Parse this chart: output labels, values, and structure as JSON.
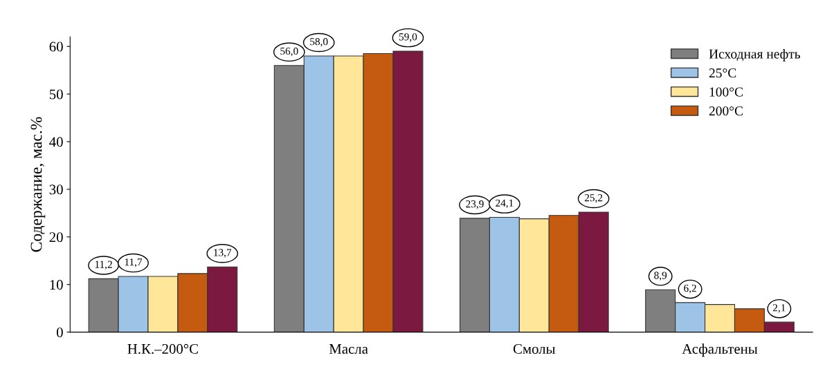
{
  "chart_data": {
    "type": "bar",
    "ylabel": "Содержание, мас.%",
    "categories": [
      "Н.К.–200°C",
      "Масла",
      "Смолы",
      "Асфальтены"
    ],
    "series": [
      {
        "name": "Исходная нефть",
        "color": "#7f7f7f",
        "values": [
          11.2,
          56.0,
          23.9,
          8.9
        ],
        "value_labels": [
          "11,2",
          "56,0",
          "23,9",
          "8,9"
        ]
      },
      {
        "name": "25°C",
        "color": "#9dc3e6",
        "values": [
          11.7,
          58.0,
          24.1,
          6.2
        ],
        "value_labels": [
          "11,7",
          "58,0",
          "24,1",
          "6,2"
        ]
      },
      {
        "name": "100°C",
        "color": "#ffe699",
        "values": [
          11.7,
          58.0,
          23.8,
          5.8
        ]
      },
      {
        "name": "200°C",
        "color": "#c55a11",
        "values": [
          12.3,
          58.5,
          24.5,
          4.9
        ]
      },
      {
        "color": "#7b1940",
        "values": [
          13.7,
          59.0,
          25.2,
          2.1
        ],
        "value_labels": [
          "13,7",
          "59,0",
          "25,2",
          "2,1"
        ]
      }
    ],
    "ylim": [
      0,
      62
    ],
    "yticks": [
      0,
      10,
      20,
      30,
      40,
      50,
      60
    ],
    "legend": "top right",
    "grid": false
  }
}
